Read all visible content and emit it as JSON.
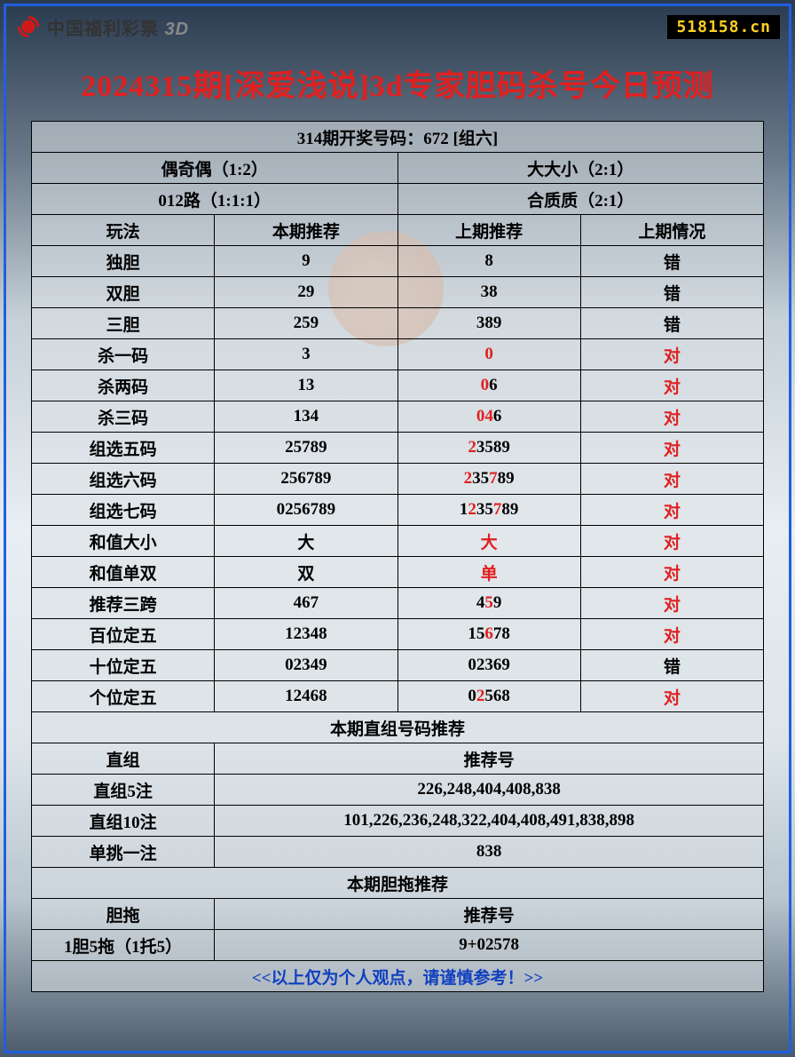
{
  "header": {
    "brand_cn": "中国福利彩票",
    "brand_3d": "3D",
    "site": "518158.cn"
  },
  "title": "2024315期[深爱浅说]3d专家胆码杀号今日预测",
  "draw_header": "314期开奖号码：672 [组六]",
  "stats": {
    "odd_even": "偶奇偶（1:2）",
    "big_small": "大大小（2:1）",
    "route012": "012路（1:1:1）",
    "prime": "合质质（2:1）"
  },
  "cols": {
    "c1": "玩法",
    "c2": "本期推荐",
    "c3": "上期推荐",
    "c4": "上期情况"
  },
  "rows": [
    {
      "name": "独胆",
      "cur": "9",
      "prev": [
        {
          "t": "8",
          "r": false
        }
      ],
      "res": "错",
      "res_red": false
    },
    {
      "name": "双胆",
      "cur": "29",
      "prev": [
        {
          "t": "38",
          "r": false
        }
      ],
      "res": "错",
      "res_red": false
    },
    {
      "name": "三胆",
      "cur": "259",
      "prev": [
        {
          "t": "389",
          "r": false
        }
      ],
      "res": "错",
      "res_red": false
    },
    {
      "name": "杀一码",
      "cur": "3",
      "prev": [
        {
          "t": "0",
          "r": true
        }
      ],
      "res": "对",
      "res_red": true
    },
    {
      "name": "杀两码",
      "cur": "13",
      "prev": [
        {
          "t": "0",
          "r": true
        },
        {
          "t": "6",
          "r": false
        }
      ],
      "res": "对",
      "res_red": true
    },
    {
      "name": "杀三码",
      "cur": "134",
      "prev": [
        {
          "t": "04",
          "r": true
        },
        {
          "t": "6",
          "r": false
        }
      ],
      "res": "对",
      "res_red": true
    },
    {
      "name": "组选五码",
      "cur": "25789",
      "prev": [
        {
          "t": "2",
          "r": true
        },
        {
          "t": "3589",
          "r": false
        }
      ],
      "res": "对",
      "res_red": true
    },
    {
      "name": "组选六码",
      "cur": "256789",
      "prev": [
        {
          "t": "2",
          "r": true
        },
        {
          "t": "35",
          "r": false
        },
        {
          "t": "7",
          "r": true
        },
        {
          "t": "89",
          "r": false
        }
      ],
      "res": "对",
      "res_red": true
    },
    {
      "name": "组选七码",
      "cur": "0256789",
      "prev": [
        {
          "t": "1",
          "r": false
        },
        {
          "t": "2",
          "r": true
        },
        {
          "t": "35",
          "r": false
        },
        {
          "t": "7",
          "r": true
        },
        {
          "t": "89",
          "r": false
        }
      ],
      "res": "对",
      "res_red": true
    },
    {
      "name": "和值大小",
      "cur": "大",
      "prev": [
        {
          "t": "大",
          "r": true
        }
      ],
      "res": "对",
      "res_red": true
    },
    {
      "name": "和值单双",
      "cur": "双",
      "prev": [
        {
          "t": "单",
          "r": true
        }
      ],
      "res": "对",
      "res_red": true
    },
    {
      "name": "推荐三跨",
      "cur": "467",
      "prev": [
        {
          "t": "4",
          "r": false
        },
        {
          "t": "5",
          "r": true
        },
        {
          "t": "9",
          "r": false
        }
      ],
      "res": "对",
      "res_red": true
    },
    {
      "name": "百位定五",
      "cur": "12348",
      "prev": [
        {
          "t": "15",
          "r": false
        },
        {
          "t": "6",
          "r": true
        },
        {
          "t": "78",
          "r": false
        }
      ],
      "res": "对",
      "res_red": true
    },
    {
      "name": "十位定五",
      "cur": "02349",
      "prev": [
        {
          "t": "02369",
          "r": false
        }
      ],
      "res": "错",
      "res_red": false
    },
    {
      "name": "个位定五",
      "cur": "12468",
      "prev": [
        {
          "t": "0",
          "r": false
        },
        {
          "t": "2",
          "r": true
        },
        {
          "t": "568",
          "r": false
        }
      ],
      "res": "对",
      "res_red": true
    }
  ],
  "sec2_header": "本期直组号码推荐",
  "sec2_cols": {
    "c1": "直组",
    "c2": "推荐号"
  },
  "sec2_rows": [
    {
      "name": "直组5注",
      "val": "226,248,404,408,838"
    },
    {
      "name": "直组10注",
      "val": "101,226,236,248,322,404,408,491,838,898"
    },
    {
      "name": "单挑一注",
      "val": "838"
    }
  ],
  "sec3_header": "本期胆拖推荐",
  "sec3_cols": {
    "c1": "胆拖",
    "c2": "推荐号"
  },
  "sec3_rows": [
    {
      "name": "1胆5拖（1托5）",
      "val": "9+02578"
    }
  ],
  "footer": "<<以上仅为个人观点，请谨慎参考！>>",
  "colors": {
    "border": "#000000",
    "title_red": "#e02020",
    "link_bg": "#000000",
    "link_fg": "#ffd020",
    "footer_blue": "#1040c0",
    "frame_blue": "#2060e0"
  }
}
